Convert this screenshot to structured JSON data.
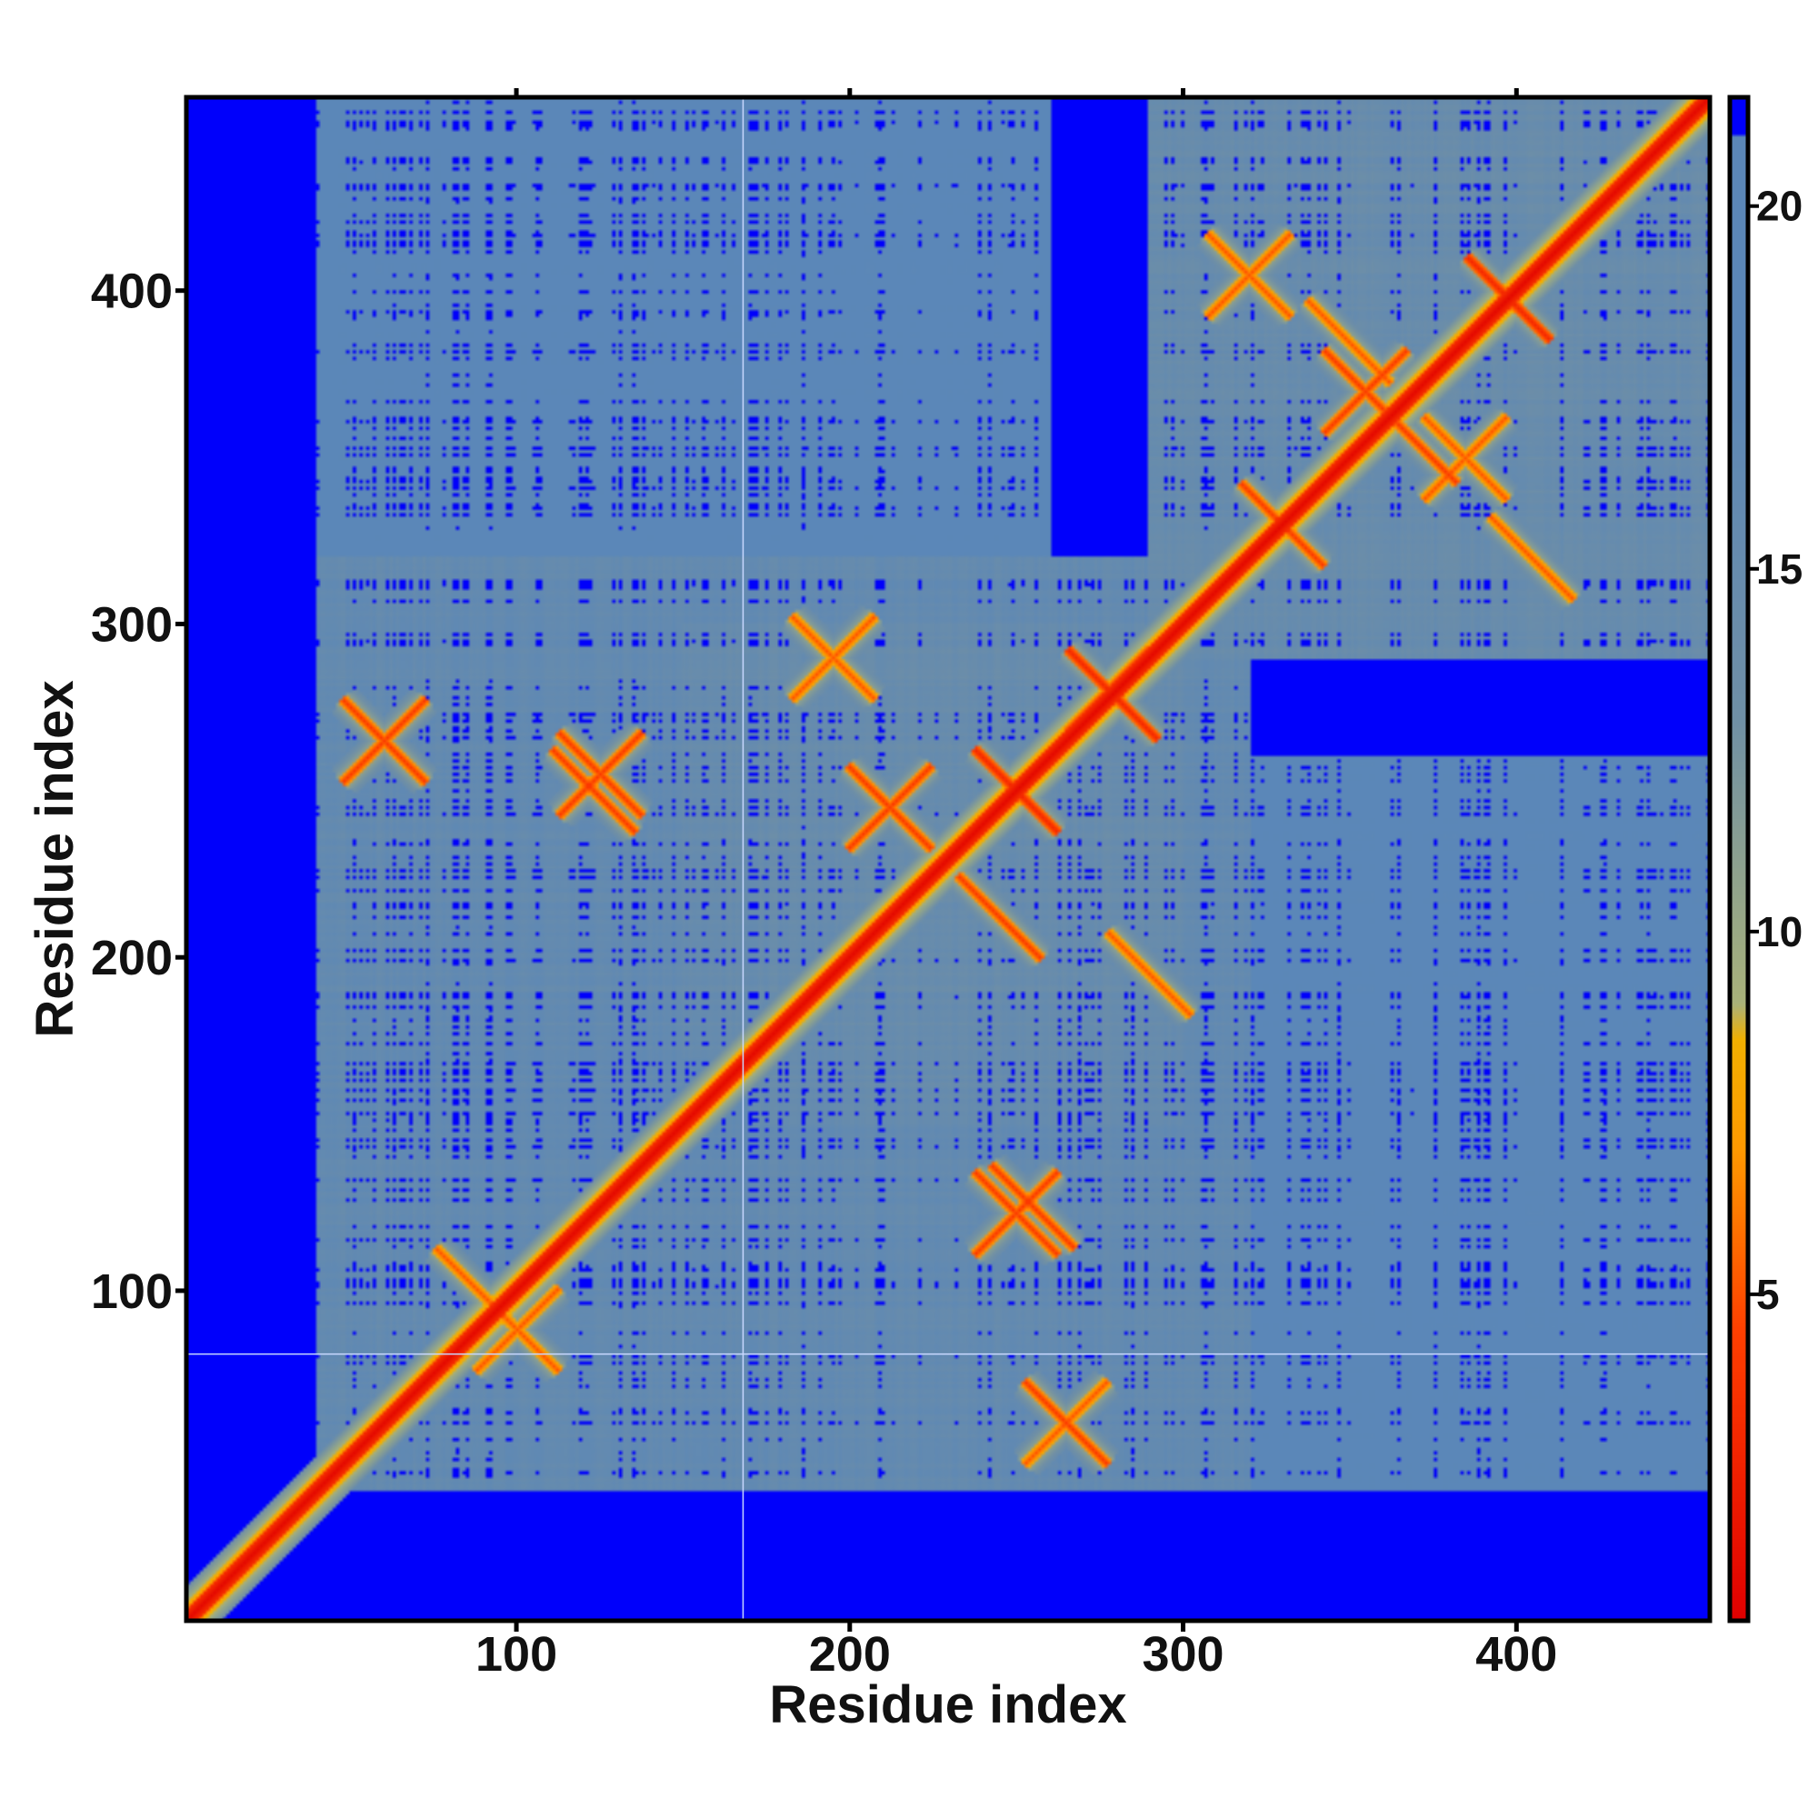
{
  "chart_data": {
    "type": "heatmap",
    "title": "",
    "xlabel": "Residue index",
    "ylabel": "Residue index",
    "xlim": [
      1,
      458
    ],
    "ylim": [
      1,
      458
    ],
    "x_ticks": [
      100,
      200,
      300,
      400
    ],
    "y_ticks": [
      100,
      200,
      300,
      400
    ],
    "colorbar": {
      "ticks": [
        5,
        10,
        15,
        20
      ],
      "range": [
        0.5,
        21.5
      ],
      "colors": [
        {
          "value": 0.5,
          "color": "#e00000"
        },
        {
          "value": 4.5,
          "color": "#ff4000"
        },
        {
          "value": 7.0,
          "color": "#ff9a00"
        },
        {
          "value": 8.5,
          "color": "#f2b000"
        },
        {
          "value": 9.0,
          "color": "#a9b27a"
        },
        {
          "value": 13.0,
          "color": "#6f8fa6"
        },
        {
          "value": 18.0,
          "color": "#5b87b8"
        },
        {
          "value": 21.0,
          "color": "#5b87b8"
        },
        {
          "value": 21.01,
          "color": "#0000fb"
        },
        {
          "value": 21.5,
          "color": "#0000fb"
        }
      ]
    },
    "background_value": 21.5,
    "matrix_description": "Symmetric residue-residue distance map; distances below about 9 along the diagonal and at contact patches, about 15-20 in the compact domain regions, above 21 elsewhere",
    "features": {
      "diagonal": {
        "from": 1,
        "to": 458,
        "value": 1
      },
      "domains": [
        {
          "x": [
            40,
            320
          ],
          "y": [
            40,
            300
          ],
          "value": 16
        },
        {
          "x": [
            170,
            300
          ],
          "y": [
            150,
            300
          ],
          "value": 15
        },
        {
          "x": [
            300,
            460
          ],
          "y": [
            290,
            455
          ],
          "value": 15
        },
        {
          "x": [
            300,
            460
          ],
          "y": [
            40,
            260
          ],
          "value": 19
        }
      ],
      "contacts": [
        {
          "x": 60,
          "y": 265,
          "value": 4
        },
        {
          "x": 100,
          "y": 88,
          "value": 5
        },
        {
          "x": 125,
          "y": 255,
          "value": 4
        },
        {
          "x": 195,
          "y": 290,
          "value": 5
        },
        {
          "x": 212,
          "y": 245,
          "value": 4
        },
        {
          "x": 250,
          "y": 250,
          "value": 3
        },
        {
          "x": 278,
          "y": 280,
          "value": 3
        },
        {
          "x": 250,
          "y": 123,
          "value": 4
        },
        {
          "x": 265,
          "y": 60,
          "value": 5
        },
        {
          "x": 320,
          "y": 405,
          "value": 5
        },
        {
          "x": 355,
          "y": 370,
          "value": 4
        },
        {
          "x": 398,
          "y": 398,
          "value": 3
        },
        {
          "x": 330,
          "y": 330,
          "value": 4
        },
        {
          "x": 385,
          "y": 350,
          "value": 5
        }
      ],
      "guide_lines": {
        "vertical_x": 168,
        "horizontal_y": 81
      }
    }
  }
}
